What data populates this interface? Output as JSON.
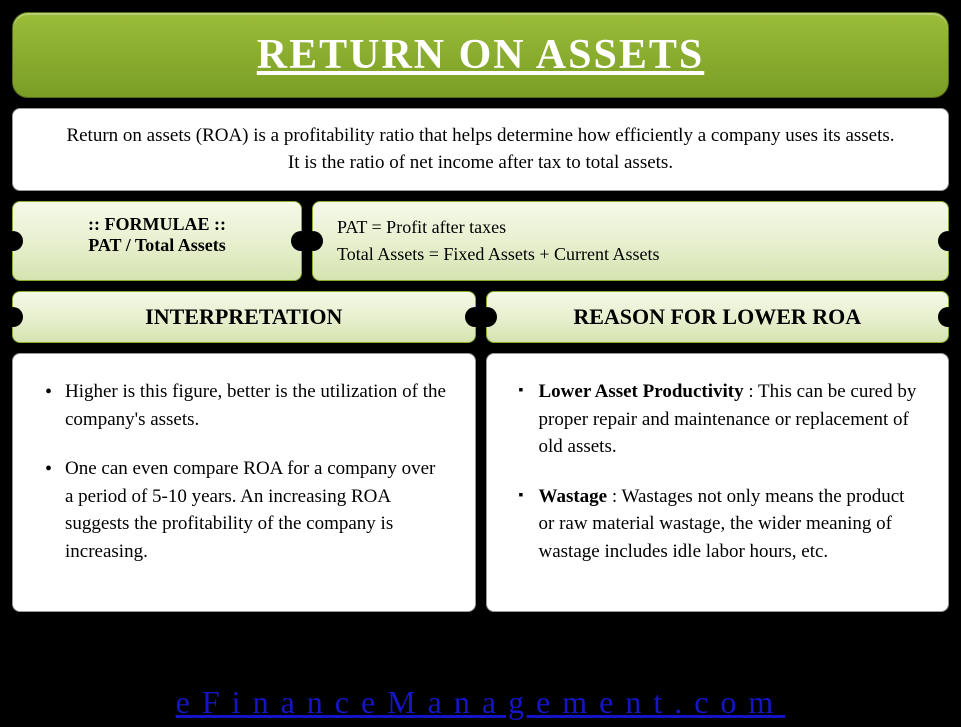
{
  "title": "RETURN ON ASSETS",
  "description": {
    "line1": "Return on assets (ROA) is a profitability ratio that helps determine how efficiently a company uses its assets.",
    "line2": "It is the ratio of net income after tax to total assets."
  },
  "formula": {
    "label": ":: FORMULAE ::",
    "expression": "PAT / Total Assets",
    "defs": {
      "line1": "PAT = Profit after taxes",
      "line2": "Total Assets = Fixed Assets + Current Assets"
    }
  },
  "sections": {
    "interpretation": {
      "heading": "INTERPRETATION",
      "points": [
        "Higher is this figure, better is the utilization of the company's assets.",
        "One can even compare ROA for a company over a period of 5-10 years. An increasing ROA suggests the profitability of the company is increasing."
      ]
    },
    "lower_roa": {
      "heading": "REASON FOR LOWER ROA",
      "points": [
        {
          "bold": "Lower Asset Productivity",
          "rest": " : This can be cured by proper repair and maintenance or replacement of old assets."
        },
        {
          "bold": "Wastage",
          "rest": " : Wastages not only means the product or raw material wastage, the wider meaning of wastage includes idle labor hours, etc."
        }
      ]
    }
  },
  "footer": "eFinanceManagement.com",
  "colors": {
    "title_bg_start": "#9bbd3a",
    "title_bg_end": "#7a9d25",
    "ticket_bg_start": "#f5f9e8",
    "ticket_bg_end": "#d5e3b0",
    "footer_link": "#1515c8",
    "page_bg": "#000000",
    "box_bg": "#ffffff"
  },
  "fonts": {
    "title_size": 42,
    "body_size": 19,
    "section_heading_size": 22,
    "footer_size": 32
  }
}
